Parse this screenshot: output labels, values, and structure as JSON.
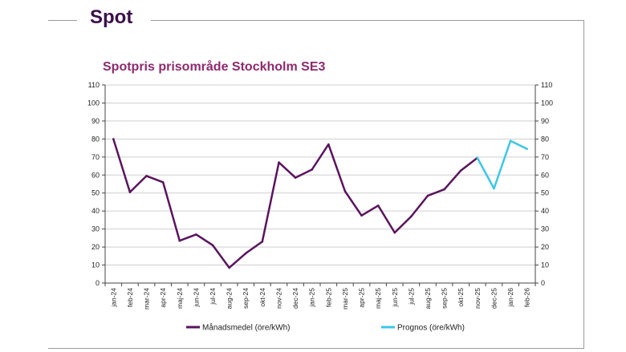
{
  "page": {
    "title": "Spot"
  },
  "chart_data": {
    "type": "line",
    "title": "Spotpris prisområde Stockholm SE3",
    "xlabel": "",
    "ylabel": "",
    "ylim": [
      0,
      110
    ],
    "yticks": [
      0,
      10,
      20,
      30,
      40,
      50,
      60,
      70,
      80,
      90,
      100,
      110
    ],
    "grid": true,
    "categories": [
      "jan-24",
      "feb-24",
      "mar-24",
      "apr-24",
      "maj-24",
      "jun-24",
      "jul-24",
      "aug-24",
      "sep-24",
      "okt-24",
      "nov-24",
      "dec-24",
      "jan-25",
      "feb-25",
      "mar-25",
      "apr-25",
      "maj-25",
      "jun-25",
      "jul-25",
      "aug-25",
      "sep-25",
      "okt-25",
      "nov-25",
      "dec-25",
      "jan-26",
      "feb-26"
    ],
    "series": [
      {
        "name": "Månadsmedel (öre/kWh)",
        "color": "#5a145e",
        "values": [
          80,
          50.5,
          59.5,
          56,
          23.5,
          27,
          21,
          8.5,
          16.5,
          23,
          67,
          58.5,
          63,
          77,
          51,
          37.5,
          43,
          28,
          37,
          48.5,
          52,
          62.5,
          69.5,
          null,
          null,
          null
        ]
      },
      {
        "name": "Prognos (öre/kWh)",
        "color": "#3dc6e8",
        "values": [
          null,
          null,
          null,
          null,
          null,
          null,
          null,
          null,
          null,
          null,
          null,
          null,
          null,
          null,
          null,
          null,
          null,
          null,
          null,
          null,
          null,
          null,
          69.5,
          52.5,
          79,
          74.5
        ]
      }
    ],
    "legend": "bottom"
  }
}
